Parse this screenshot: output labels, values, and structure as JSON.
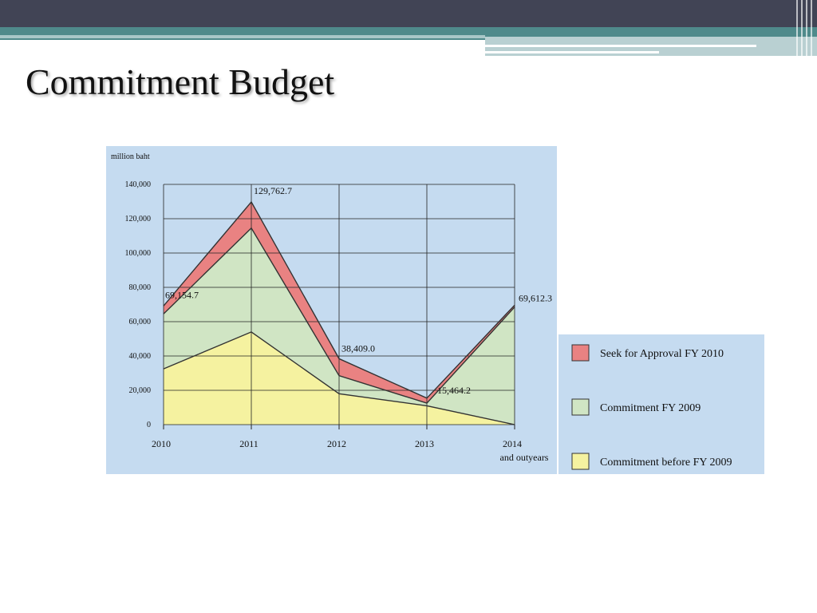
{
  "slide": {
    "title": "Commitment Budget"
  },
  "colors": {
    "panel_bg": "#c5dbf0",
    "seek": "#e98282",
    "commit_2009": "#d0e5c4",
    "commit_before": "#f5f2a0",
    "top_bar": "#414455",
    "teal": "#4f8a8b"
  },
  "chart_data": {
    "type": "area",
    "stacked": true,
    "unit_label": "million baht",
    "x": [
      "2010",
      "2011",
      "2012",
      "2013",
      "2014"
    ],
    "x_tick_labels": [
      "2010",
      "2011",
      "2012",
      "2013",
      "2014"
    ],
    "x_last_sublabel": "and outyears",
    "y_ticks": [
      "0",
      "20,000",
      "40,000",
      "60,000",
      "80,000",
      "100,000",
      "120,000",
      "140,000"
    ],
    "ylim": [
      0,
      140000
    ],
    "grid": true,
    "series": [
      {
        "name": "Commitment before FY 2009",
        "color": "#f5f2a0",
        "values": [
          32500,
          54000,
          18000,
          11000,
          0
        ]
      },
      {
        "name": "Commitment FY 2009",
        "color": "#d0e5c4",
        "values": [
          32000,
          60500,
          10500,
          1500,
          68500
        ]
      },
      {
        "name": "Seek for Approval FY 2010",
        "color": "#e98282",
        "values": [
          4654.7,
          15262.7,
          9909.0,
          2964.2,
          1112.3
        ]
      }
    ],
    "totals": [
      69154.7,
      129762.7,
      38409.0,
      15464.2,
      69612.3
    ],
    "total_labels": [
      "69,154.7",
      "129,762.7",
      "38,409.0",
      "15,464.2",
      "69,612.3"
    ],
    "legend_placement": "right",
    "legend_order": [
      "Seek for Approval FY 2010",
      "Commitment FY 2009",
      "Commitment before FY 2009"
    ]
  }
}
